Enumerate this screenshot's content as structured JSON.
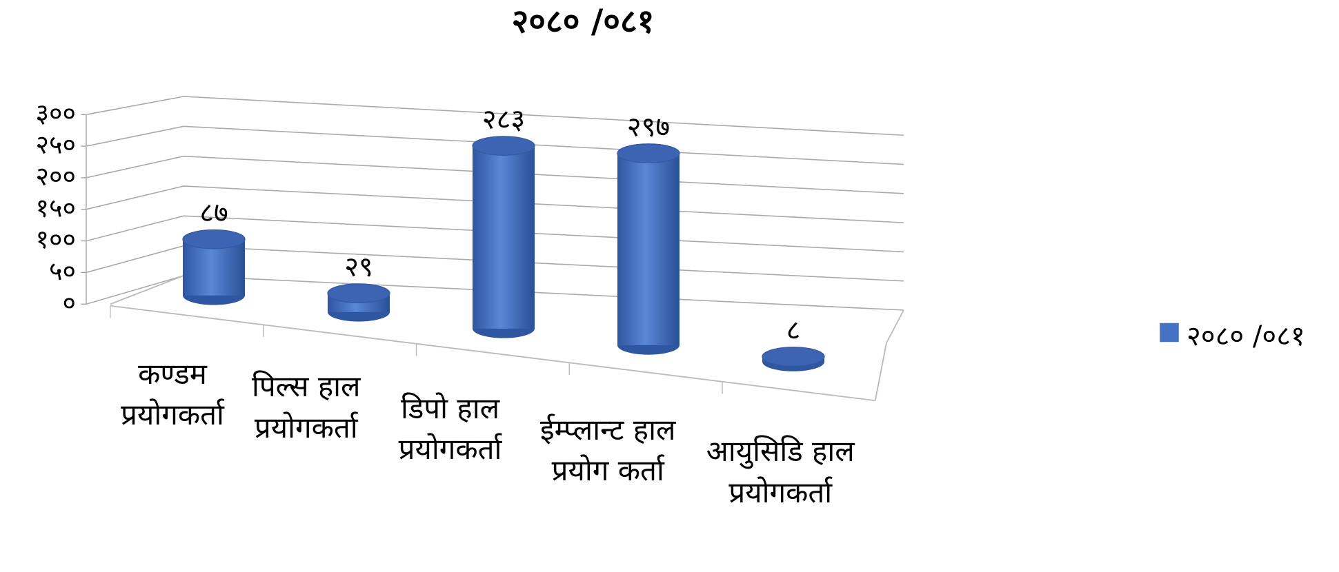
{
  "chart_data": {
    "type": "bar3d",
    "title": "२०८० /०८१",
    "categories": [
      "कण्डम प्रयोगकर्ता",
      "पिल्स हाल प्रयोगकर्ता",
      "डिपो हाल प्रयोगकर्ता",
      "ईम्प्लान्ट हाल प्रयोग कर्ता",
      "आयुसिडि हाल प्रयोगकर्ता"
    ],
    "series": [
      {
        "name": "२०८० /०८१",
        "color": "#4472c4",
        "values": [
          87,
          29,
          283,
          297,
          8
        ],
        "value_labels": [
          "८७",
          "२९",
          "२८३",
          "२९७",
          "८"
        ]
      }
    ],
    "ylim": [
      0,
      300
    ],
    "yticks": [
      {
        "value": 0,
        "label": "०"
      },
      {
        "value": 50,
        "label": "५०"
      },
      {
        "value": 100,
        "label": "१००"
      },
      {
        "value": 150,
        "label": "१५०"
      },
      {
        "value": 200,
        "label": "२००"
      },
      {
        "value": 250,
        "label": "२५०"
      },
      {
        "value": 300,
        "label": "३००"
      }
    ],
    "grid": true,
    "legend": "right"
  }
}
